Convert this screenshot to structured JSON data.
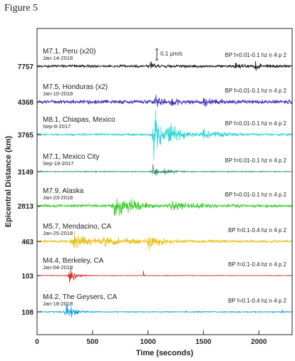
{
  "figure_label": "Figure 5",
  "chart_data": {
    "type": "line",
    "title": "",
    "xlabel": "Time (seconds)",
    "ylabel": "Epicentral Distance (km)",
    "xlim": [
      0,
      2300
    ],
    "x_ticks": [
      "0",
      "500",
      "1000",
      "1500",
      "2000"
    ],
    "x_tick_values": [
      0,
      500,
      1000,
      1500,
      2000
    ],
    "scale_bar": "0.1 µm/s",
    "scale_bar_time": 1080,
    "grid": false,
    "series": [
      {
        "name": "M7.1, Peru (x20)",
        "date": "Jan-14-2018",
        "distance": "7757",
        "filter": "BP f=0.01-0.1 hz n 4 p 2",
        "color": "#1c1c1c",
        "bursts": [
          {
            "t": 1020,
            "w": 25,
            "a": 1.6
          },
          {
            "t": 1780,
            "w": 40,
            "a": 0.7
          },
          {
            "t": 1970,
            "w": 40,
            "a": 0.9
          }
        ],
        "noise": 0.35,
        "seed": 11
      },
      {
        "name": "M7.5, Honduras (x2)",
        "date": "Jan-10-2018",
        "distance": "4368",
        "filter": "BP f=0.01-0.1 hz n 4 p 2",
        "color": "#3b2fb8",
        "bursts": [
          {
            "t": 1060,
            "w": 30,
            "a": 3.2
          },
          {
            "t": 1200,
            "w": 40,
            "a": 1.5
          },
          {
            "t": 1500,
            "w": 60,
            "a": 0.9
          }
        ],
        "noise": 0.55,
        "seed": 23
      },
      {
        "name": "M8.1, Chiapas, Mexico",
        "date": "Sep-8-2017",
        "distance": "3765",
        "filter": "BP f=0.01-0.1 hz n 4 p 2",
        "color": "#2fd6d6",
        "bursts": [
          {
            "t": 1050,
            "w": 60,
            "a": 7.5
          },
          {
            "t": 1200,
            "w": 80,
            "a": 2.5
          },
          {
            "t": 1500,
            "w": 120,
            "a": 1.1
          }
        ],
        "noise": 0.3,
        "seed": 37
      },
      {
        "name": "M7.1, Mexico City",
        "date": "Sep-19-2017",
        "distance": "3149",
        "filter": "BP f=0.01-0.1 hz n 4 p 2",
        "color": "#2a8a72",
        "bursts": [
          {
            "t": 1040,
            "w": 30,
            "a": 2.4
          },
          {
            "t": 1150,
            "w": 50,
            "a": 0.9
          }
        ],
        "noise": 0.12,
        "seed": 41
      },
      {
        "name": "M7.9, Alaska",
        "date": "Jan-23-2018",
        "distance": "2813",
        "filter": "BP f=0.01-0.1 hz n 4 p 2",
        "color": "#3acb2a",
        "bursts": [
          {
            "t": 690,
            "w": 60,
            "a": 4.6
          },
          {
            "t": 820,
            "w": 80,
            "a": 1.8
          },
          {
            "t": 1200,
            "w": 200,
            "a": 0.9
          }
        ],
        "noise": 0.4,
        "seed": 53
      },
      {
        "name": "M5.7, Mendacino, CA",
        "date": "Jan-25-2018",
        "distance": "463",
        "filter": "BP f=0.1-0.4 hz n 4 p 2",
        "color": "#e8c21a",
        "bursts": [
          {
            "t": 330,
            "w": 90,
            "a": 2.6
          },
          {
            "t": 600,
            "w": 150,
            "a": 1.2
          },
          {
            "t": 1000,
            "w": 80,
            "a": 2.0
          }
        ],
        "noise": 0.35,
        "seed": 67
      },
      {
        "name": "M4.4, Berkeley, CA",
        "date": "Jan-04-2018",
        "distance": "103",
        "filter": "BP f=0.1-0.4 hz n 4 p 2",
        "color": "#d92020",
        "bursts": [
          {
            "t": 290,
            "w": 45,
            "a": 2.4
          },
          {
            "t": 960,
            "w": 6,
            "a": 1.4
          }
        ],
        "noise": 0.08,
        "seed": 71
      },
      {
        "name": "M4.2, The Geysers, CA",
        "date": "Jan-18-2018",
        "distance": "108",
        "filter": "BP f=0.1-0.4 hz n 4 p 2",
        "color": "#1ba0d8",
        "bursts": [
          {
            "t": 260,
            "w": 45,
            "a": 3.2
          },
          {
            "t": 2210,
            "w": 6,
            "a": 1.0
          }
        ],
        "noise": 0.15,
        "seed": 83
      }
    ]
  }
}
